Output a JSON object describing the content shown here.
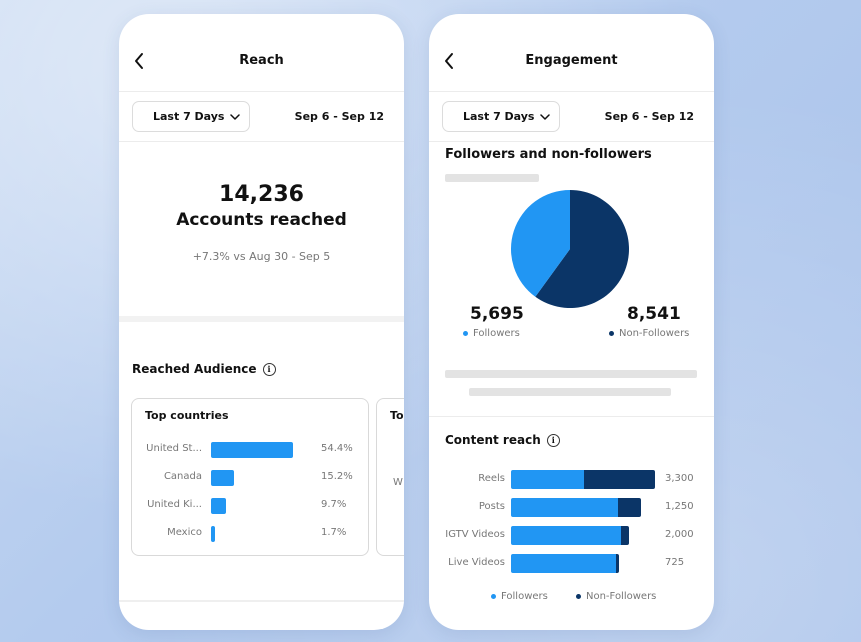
{
  "colors": {
    "followers": "#2196f3",
    "non_followers": "#0b3567"
  },
  "reach": {
    "title": "Reach",
    "back_icon": "chevron-left-icon",
    "filter": {
      "label": "Last 7 Days",
      "icon": "chevron-down-icon"
    },
    "date_range": "Sep 6 - Sep 12",
    "accounts_reached_value": "14,236",
    "accounts_reached_label": "Accounts reached",
    "delta": "+7.3% vs Aug 30 - Sep 5",
    "audience_title": "Reached Audience",
    "info_icon": "info-icon",
    "top_countries": {
      "title": "Top countries",
      "rows": [
        {
          "name": "United St...",
          "pct_label": "54.4%",
          "value": 54.4
        },
        {
          "name": "Canada",
          "pct_label": "15.2%",
          "value": 15.2
        },
        {
          "name": "United Ki...",
          "pct_label": "9.7%",
          "value": 9.7
        },
        {
          "name": "Mexico",
          "pct_label": "1.7%",
          "value": 1.7
        }
      ]
    },
    "second_card_title": "To",
    "second_card_ghost": "W"
  },
  "engagement": {
    "title": "Engagement",
    "back_icon": "chevron-left-icon",
    "filter": {
      "label": "Last 7 Days",
      "icon": "chevron-down-icon"
    },
    "date_range": "Sep 6 - Sep 12",
    "followers_title": "Followers and non-followers",
    "followers_value": "5,695",
    "followers_label": "Followers",
    "non_followers_value": "8,541",
    "non_followers_label": "Non-Followers",
    "content_reach_title": "Content reach",
    "info_icon": "info-icon",
    "content_rows": [
      {
        "name": "Reels",
        "value_label": "3,300",
        "followers_share": 0.51,
        "total": 3300
      },
      {
        "name": "Posts",
        "value_label": "1,250",
        "followers_share": 0.82,
        "total": 1250
      },
      {
        "name": "IGTV Videos",
        "value_label": "2,000",
        "followers_share": 0.93,
        "total": 2000
      },
      {
        "name": "Live Videos",
        "value_label": "725",
        "followers_share": 0.97,
        "total": 725
      }
    ],
    "legend_followers": "Followers",
    "legend_non_followers": "Non-Followers"
  }
}
